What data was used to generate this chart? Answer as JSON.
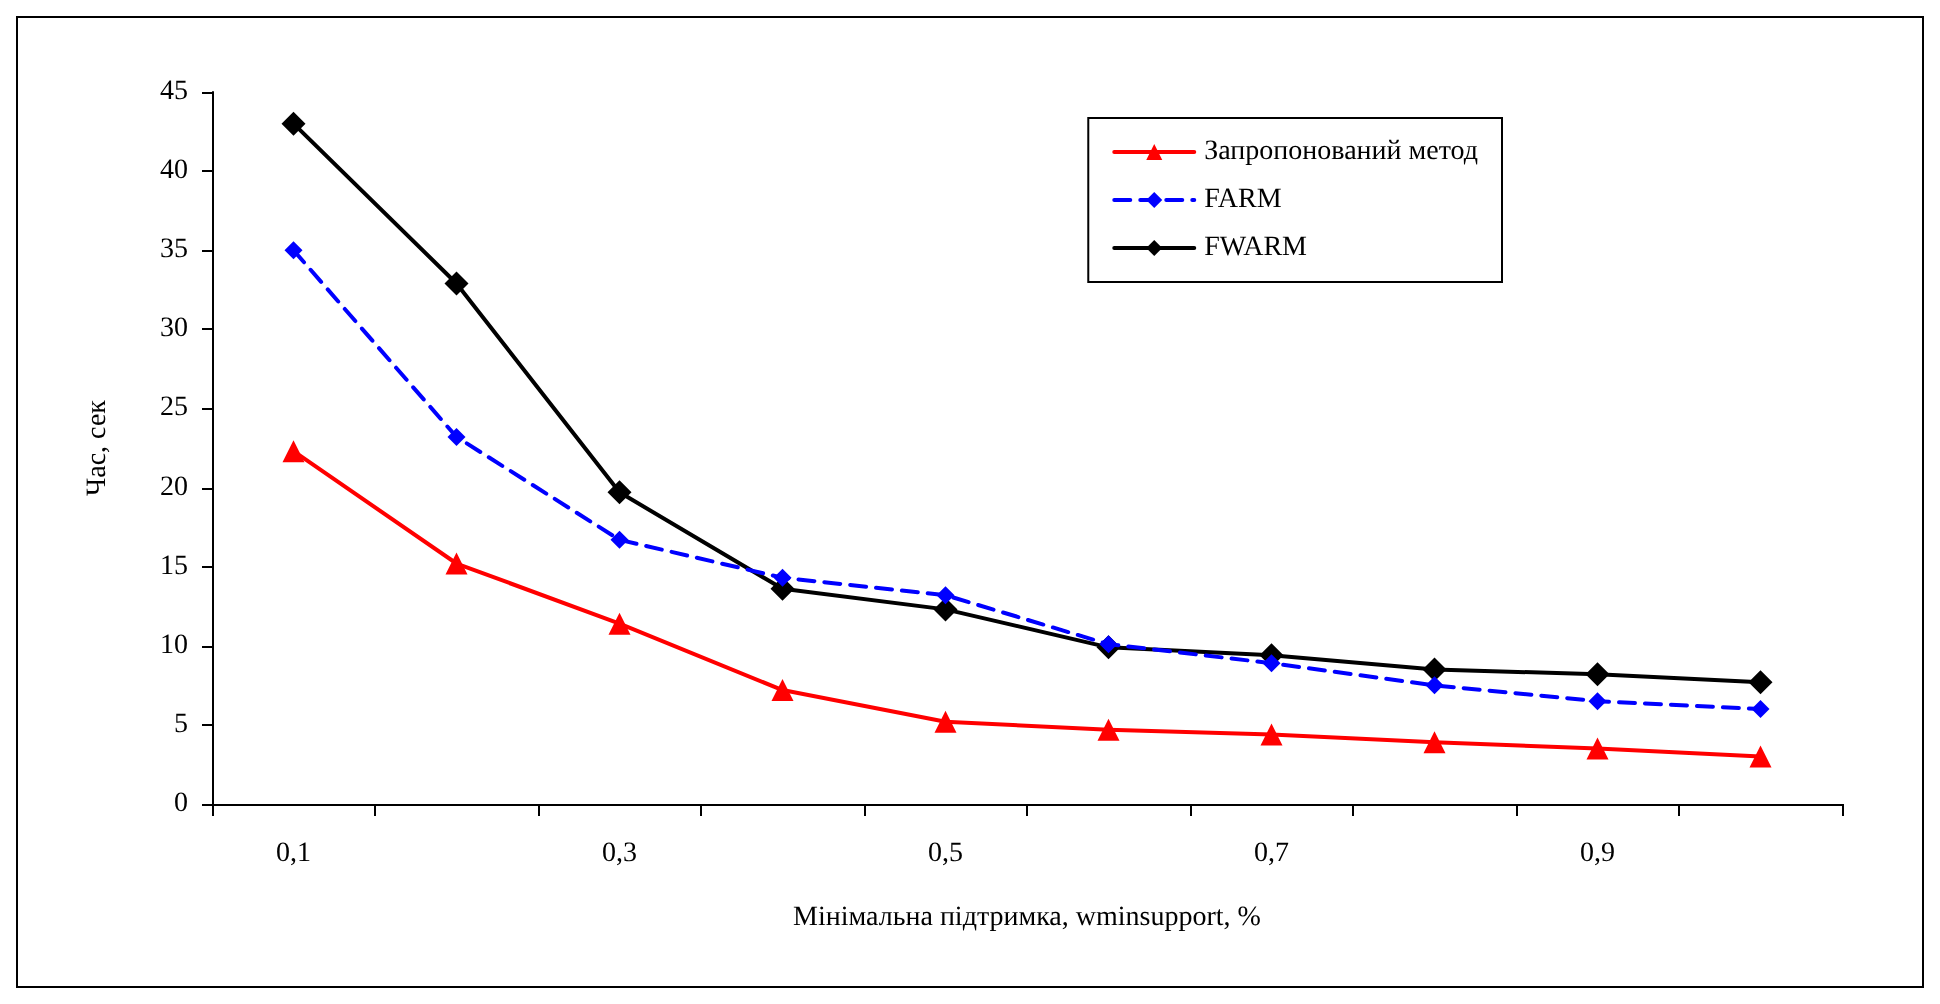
{
  "chart_data": {
    "type": "line",
    "xlabel": "Мінімальна підтримка, wminsupport, %",
    "ylabel": "Час, сек",
    "categories": [
      "0,1",
      null,
      "0,3",
      null,
      "0,5",
      null,
      "0,7",
      null,
      "0,9",
      null
    ],
    "series": [
      {
        "name": "Запропонований метод",
        "color": "#ff0000",
        "marker": "triangle",
        "line_style": "solid",
        "values": [
          22.3,
          15.2,
          11.4,
          7.2,
          5.2,
          4.7,
          4.4,
          3.9,
          3.5,
          3.0
        ]
      },
      {
        "name": "FARM",
        "color": "#0000ff",
        "marker": "diamond",
        "line_style": "dashed",
        "values": [
          35,
          23.2,
          16.7,
          14.3,
          13.2,
          10.1,
          8.9,
          7.5,
          6.5,
          6.0
        ]
      },
      {
        "name": "FWARM",
        "color": "#000000",
        "marker": "diamond",
        "line_style": "solid",
        "values": [
          43,
          32.9,
          19.7,
          13.6,
          12.3,
          9.9,
          9.4,
          8.5,
          8.2,
          7.7
        ]
      }
    ],
    "ylim": [
      0,
      45
    ],
    "yticks": [
      0,
      5,
      10,
      15,
      20,
      25,
      30,
      35,
      40,
      45
    ],
    "grid": false,
    "legend": "top right"
  }
}
